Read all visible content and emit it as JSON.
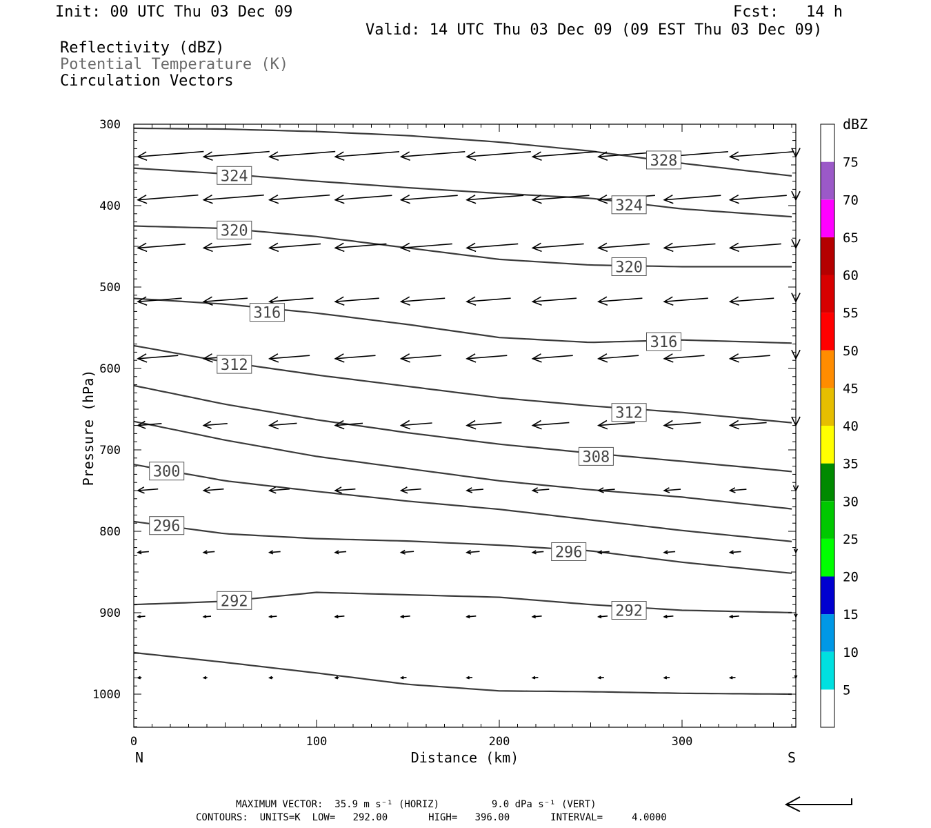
{
  "header": {
    "init": "Init: 00 UTC Thu 03 Dec 09",
    "fcst_label": "Fcst:",
    "fcst_value": "14 h",
    "valid": "Valid: 14 UTC Thu 03 Dec 09 (09 EST Thu 03 Dec 09)",
    "field1": "Reflectivity (dBZ)",
    "field2": "Potential Temperature (K)",
    "field3": "Circulation Vectors"
  },
  "footer": {
    "max_vector": "MAXIMUM VECTOR:  35.9 m s⁻¹ (HORIZ)         9.0 dPa s⁻¹ (VERT)",
    "contours": "CONTOURS:  UNITS=K  LOW=   292.00       HIGH=   396.00       INTERVAL=     4.0000"
  },
  "colors": {
    "contour": "#3a3a3a",
    "frame": "#000000"
  },
  "chart_data": {
    "type": "line",
    "xlabel": "Distance (km)",
    "ylabel": "Pressure (hPa)",
    "xlim": [
      0,
      362
    ],
    "ylim": [
      1040,
      300
    ],
    "y_scale": "reversed",
    "x_ticks": [
      0,
      100,
      200,
      300
    ],
    "y_ticks": [
      300,
      400,
      500,
      600,
      700,
      800,
      900,
      1000
    ],
    "x_end_labels": {
      "left": "N",
      "right": "S"
    },
    "contour_x": [
      0,
      50,
      100,
      150,
      200,
      250,
      300,
      362
    ],
    "contours": [
      {
        "theta": 328,
        "label_x": 290,
        "values": [
          305,
          306,
          309,
          314,
          322,
          333,
          348,
          364
        ]
      },
      {
        "theta": 324,
        "label_x": 274,
        "values": [
          354,
          361,
          370,
          378,
          385,
          391,
          404,
          414
        ]
      },
      {
        "theta": 324,
        "label_x": 55,
        "values": null
      },
      {
        "theta": 320,
        "label_x": 55,
        "values": [
          425,
          428,
          438,
          452,
          466,
          473,
          475,
          475
        ]
      },
      {
        "theta": 320,
        "label_x": 274,
        "values": null
      },
      {
        "theta": 316,
        "label_x": 73,
        "values": [
          514,
          521,
          532,
          546,
          562,
          568,
          565,
          569
        ]
      },
      {
        "theta": 316,
        "label_x": 290,
        "values": null
      },
      {
        "theta": 312,
        "label_x": 55,
        "values": [
          572,
          592,
          608,
          622,
          636,
          646,
          654,
          667
        ]
      },
      {
        "theta": 312,
        "label_x": 274,
        "values": null
      },
      {
        "theta": 308,
        "label_x": 253,
        "values": [
          621,
          644,
          663,
          679,
          693,
          704,
          714,
          727
        ]
      },
      {
        "theta": 304,
        "label_x": null,
        "values": [
          665,
          688,
          708,
          723,
          738,
          749,
          758,
          773
        ]
      },
      {
        "theta": 300,
        "label_x": 18,
        "values": [
          718,
          738,
          751,
          763,
          773,
          786,
          799,
          813
        ]
      },
      {
        "theta": 296,
        "label_x": 18,
        "values": [
          788,
          803,
          809,
          812,
          817,
          824,
          838,
          852
        ]
      },
      {
        "theta": 296,
        "label_x": 238,
        "values": null
      },
      {
        "theta": 292,
        "label_x": 55,
        "values": [
          890,
          886,
          875,
          878,
          881,
          890,
          897,
          900
        ]
      },
      {
        "theta": 292,
        "label_x": 274,
        "values": null
      },
      {
        "theta": null,
        "label_x": null,
        "values": [
          949,
          961,
          974,
          988,
          996,
          997,
          999,
          1000
        ]
      }
    ],
    "contour_labels": [
      {
        "text": "328",
        "x": 290,
        "p": 344
      },
      {
        "text": "324",
        "x": 55,
        "p": 363
      },
      {
        "text": "324",
        "x": 271,
        "p": 399
      },
      {
        "text": "320",
        "x": 55,
        "p": 430
      },
      {
        "text": "320",
        "x": 271,
        "p": 475
      },
      {
        "text": "316",
        "x": 73,
        "p": 531
      },
      {
        "text": "316",
        "x": 290,
        "p": 567
      },
      {
        "text": "312",
        "x": 55,
        "p": 595
      },
      {
        "text": "312",
        "x": 271,
        "p": 654
      },
      {
        "text": "308",
        "x": 253,
        "p": 708
      },
      {
        "text": "300",
        "x": 18,
        "p": 726
      },
      {
        "text": "296",
        "x": 18,
        "p": 793
      },
      {
        "text": "296",
        "x": 238,
        "p": 825
      },
      {
        "text": "292",
        "x": 55,
        "p": 885
      },
      {
        "text": "292",
        "x": 271,
        "p": 897
      }
    ],
    "vectors": {
      "x_columns": [
        0,
        36,
        72,
        108,
        144,
        180,
        216,
        252,
        288,
        324,
        360
      ],
      "rows": [
        {
          "p": 340,
          "u": [
            -36,
            -36,
            -36,
            -35,
            -35,
            -35,
            -35,
            -35,
            -35,
            -35,
            -33
          ]
        },
        {
          "p": 393,
          "u": [
            -33,
            -33,
            -33,
            -31,
            -31,
            -31,
            -31,
            -31,
            -31,
            -31,
            -31
          ]
        },
        {
          "p": 452,
          "u": [
            -26,
            -26,
            -28,
            -28,
            -28,
            -28,
            -28,
            -28,
            -28,
            -28,
            -28
          ]
        },
        {
          "p": 518,
          "u": [
            -24,
            -24,
            -24,
            -24,
            -24,
            -24,
            -24,
            -24,
            -24,
            -24,
            -24
          ]
        },
        {
          "p": 588,
          "u": [
            -22,
            -22,
            -22,
            -22,
            -22,
            -22,
            -22,
            -22,
            -22,
            -22,
            -22
          ]
        },
        {
          "p": 670,
          "u": [
            -13,
            -13,
            -15,
            -15,
            -17,
            -19,
            -20,
            -20,
            -20,
            -20,
            -20
          ]
        },
        {
          "p": 750,
          "u": [
            -11,
            -11,
            -11,
            -11,
            -11,
            -9,
            -9,
            -9,
            -9,
            -9,
            -9
          ]
        },
        {
          "p": 826,
          "u": [
            -6,
            -6,
            -6,
            -6,
            -7,
            -7,
            -6,
            -6,
            -6,
            -6,
            -6
          ]
        },
        {
          "p": 905,
          "u": [
            -4,
            -4,
            -4,
            -5,
            -5,
            -5,
            -5,
            -5,
            -5,
            -5,
            -5
          ]
        },
        {
          "p": 980,
          "u": [
            -2,
            -2,
            -2,
            -2,
            -3,
            -3,
            -3,
            -3,
            -3,
            -3,
            -3
          ]
        }
      ]
    },
    "colorbar": {
      "title": "dBZ",
      "levels": [
        5,
        10,
        15,
        20,
        25,
        30,
        35,
        40,
        45,
        50,
        55,
        60,
        65,
        70,
        75
      ],
      "colors": [
        "#ffffff",
        "#00e0e0",
        "#0098e6",
        "#0000d0",
        "#00ff00",
        "#00c800",
        "#008a00",
        "#ffff00",
        "#e6be00",
        "#ff8c00",
        "#ff0000",
        "#d70000",
        "#b40000",
        "#ff00ff",
        "#9b59c8",
        "#ffffff"
      ]
    },
    "reference_vector": {
      "horiz": "35.9 m s-1",
      "vert": "9.0 dPa s-1"
    }
  }
}
